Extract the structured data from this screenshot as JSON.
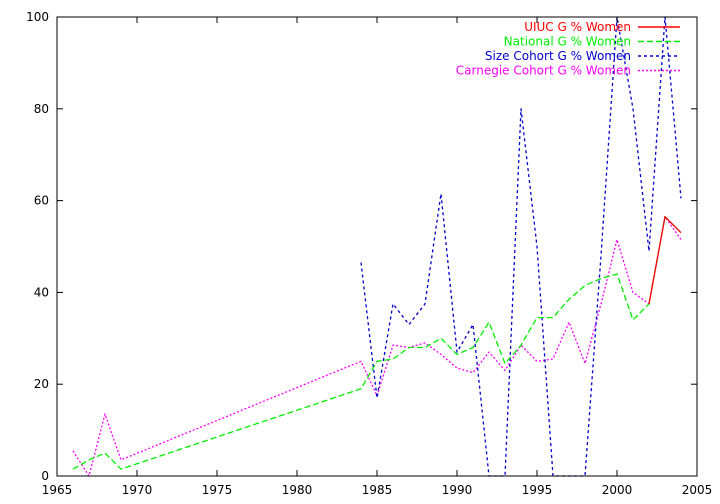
{
  "chart_data": {
    "type": "line",
    "title": "",
    "xlabel": "",
    "ylabel": "",
    "xlim": [
      1965,
      2005
    ],
    "ylim": [
      0,
      100
    ],
    "xticks": [
      1965,
      1970,
      1975,
      1980,
      1985,
      1990,
      1995,
      2000,
      2005
    ],
    "yticks": [
      0,
      20,
      40,
      60,
      80,
      100
    ],
    "grid": false,
    "legend_position": "top-right",
    "series": [
      {
        "name": "UIUC G % Women",
        "color": "#ff0000",
        "dash": "",
        "points": [
          [
            2002,
            37.5
          ],
          [
            2003,
            56.5
          ],
          [
            2004,
            53.0
          ]
        ]
      },
      {
        "name": "National G % Women",
        "color": "#00ee00",
        "dash": "6,3",
        "points": [
          [
            1966,
            1.5
          ],
          [
            1967,
            3.5
          ],
          [
            1968,
            5.0
          ],
          [
            1969,
            1.5
          ],
          [
            1984,
            19.0
          ],
          [
            1985,
            25.0
          ],
          [
            1986,
            25.5
          ],
          [
            1987,
            28.0
          ],
          [
            1988,
            28.0
          ],
          [
            1989,
            30.0
          ],
          [
            1990,
            26.5
          ],
          [
            1991,
            28.0
          ],
          [
            1992,
            33.5
          ],
          [
            1993,
            24.5
          ],
          [
            1994,
            28.5
          ],
          [
            1995,
            34.5
          ],
          [
            1996,
            34.5
          ],
          [
            1997,
            38.5
          ],
          [
            1998,
            41.5
          ],
          [
            1999,
            43.0
          ],
          [
            2000,
            44.0
          ],
          [
            2001,
            34.0
          ],
          [
            2002,
            37.5
          ],
          [
            2003,
            56.5
          ],
          [
            2004,
            53.0
          ]
        ]
      },
      {
        "name": "Size Cohort G % Women",
        "color": "#0000cc",
        "dash": "3,3",
        "points": [
          [
            1984,
            46.5
          ],
          [
            1985,
            17.0
          ],
          [
            1986,
            37.5
          ],
          [
            1987,
            33.0
          ],
          [
            1988,
            37.5
          ],
          [
            1989,
            61.5
          ],
          [
            1990,
            27.0
          ],
          [
            1991,
            33.0
          ],
          [
            1992,
            0.0
          ],
          [
            1993,
            0.0
          ],
          [
            1994,
            80.0
          ],
          [
            1995,
            50.0
          ],
          [
            1996,
            0.0
          ],
          [
            1997,
            0.0
          ],
          [
            1998,
            0.0
          ],
          [
            1999,
            48.0
          ],
          [
            2000,
            100.0
          ],
          [
            2001,
            80.0
          ],
          [
            2002,
            49.0
          ],
          [
            2003,
            100.0
          ],
          [
            2004,
            60.5
          ]
        ]
      },
      {
        "name": "Carnegie Cohort G % Women",
        "color": "#ff00ff",
        "dash": "2,2",
        "points": [
          [
            1966,
            5.5
          ],
          [
            1967,
            0.0
          ],
          [
            1968,
            13.5
          ],
          [
            1969,
            3.5
          ],
          [
            1984,
            25.0
          ],
          [
            1985,
            17.5
          ],
          [
            1986,
            28.5
          ],
          [
            1987,
            28.0
          ],
          [
            1988,
            29.0
          ],
          [
            1989,
            26.5
          ],
          [
            1990,
            23.5
          ],
          [
            1991,
            22.5
          ],
          [
            1992,
            27.0
          ],
          [
            1993,
            23.0
          ],
          [
            1994,
            28.5
          ],
          [
            1995,
            25.0
          ],
          [
            1996,
            25.5
          ],
          [
            1997,
            33.5
          ],
          [
            1998,
            24.5
          ],
          [
            1999,
            37.5
          ],
          [
            2000,
            51.5
          ],
          [
            2001,
            40.0
          ],
          [
            2002,
            37.5
          ],
          [
            2003,
            56.5
          ],
          [
            2004,
            51.5
          ]
        ]
      }
    ]
  }
}
